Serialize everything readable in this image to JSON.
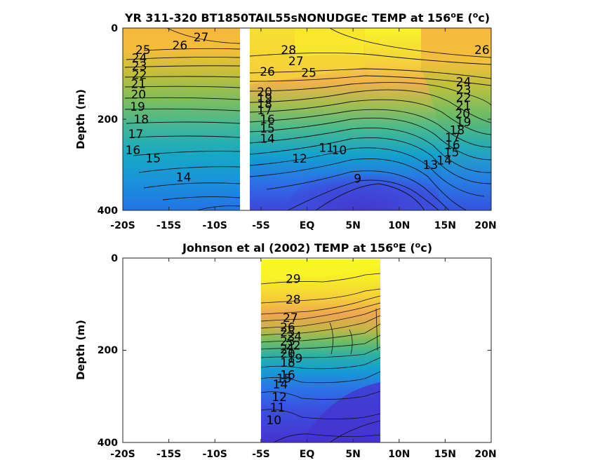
{
  "chart_data": [
    {
      "type": "heatmap",
      "title_prefix": "YR 311-320 BT1850TAIL55sNONUDGEc TEMP at 156",
      "title_sup1": "o",
      "title_mid": "E (",
      "title_sup2": "o",
      "title_suffix": "c)",
      "ylabel": "Depth (m)",
      "xlim": [
        -20,
        20
      ],
      "ylim": [
        0,
        400
      ],
      "y_reversed": true,
      "x_ticks": [
        -20,
        -15,
        -10,
        -5,
        0,
        5,
        10,
        15,
        20
      ],
      "x_tick_labels": [
        "-20S",
        "-15S",
        "-10S",
        "-5S",
        "EQ",
        "5N",
        "10N",
        "15N",
        "20N"
      ],
      "y_ticks": [
        0,
        200,
        400
      ],
      "y_tick_labels": [
        "0",
        "200",
        "400"
      ],
      "data_gap": [
        -7.7,
        -6.9
      ],
      "colormap": "parula",
      "contour_interval": 1,
      "contour_labels": [
        {
          "text": "27",
          "x": -11.5,
          "y": 20
        },
        {
          "text": "26",
          "x": -13.8,
          "y": 38
        },
        {
          "text": "25",
          "x": -17.8,
          "y": 48
        },
        {
          "text": "24",
          "x": -18.2,
          "y": 65
        },
        {
          "text": "23",
          "x": -18.2,
          "y": 83
        },
        {
          "text": "22",
          "x": -18.2,
          "y": 102
        },
        {
          "text": "21",
          "x": -18.3,
          "y": 122
        },
        {
          "text": "20",
          "x": -18.3,
          "y": 145
        },
        {
          "text": "19",
          "x": -18.4,
          "y": 172
        },
        {
          "text": "18",
          "x": -18.0,
          "y": 200
        },
        {
          "text": "17",
          "x": -18.6,
          "y": 232
        },
        {
          "text": "16",
          "x": -18.9,
          "y": 268
        },
        {
          "text": "15",
          "x": -16.7,
          "y": 285
        },
        {
          "text": "14",
          "x": -13.4,
          "y": 327
        },
        {
          "text": "28",
          "x": -2.0,
          "y": 48
        },
        {
          "text": "27",
          "x": -1.2,
          "y": 72
        },
        {
          "text": "26",
          "x": -4.3,
          "y": 95
        },
        {
          "text": "25",
          "x": 0.2,
          "y": 98
        },
        {
          "text": "20",
          "x": -4.6,
          "y": 140
        },
        {
          "text": "19",
          "x": -4.6,
          "y": 153
        },
        {
          "text": "18",
          "x": -4.6,
          "y": 166
        },
        {
          "text": "17",
          "x": -4.6,
          "y": 180
        },
        {
          "text": "16",
          "x": -4.3,
          "y": 200
        },
        {
          "text": "15",
          "x": -4.3,
          "y": 220
        },
        {
          "text": "14",
          "x": -4.3,
          "y": 242
        },
        {
          "text": "12",
          "x": -0.8,
          "y": 286
        },
        {
          "text": "11",
          "x": 2.1,
          "y": 262
        },
        {
          "text": "10",
          "x": 3.5,
          "y": 268
        },
        {
          "text": "9",
          "x": 5.5,
          "y": 330
        },
        {
          "text": "26",
          "x": 19.0,
          "y": 48
        },
        {
          "text": "24",
          "x": 17.0,
          "y": 118
        },
        {
          "text": "23",
          "x": 17.0,
          "y": 135
        },
        {
          "text": "22",
          "x": 17.0,
          "y": 152
        },
        {
          "text": "21",
          "x": 17.0,
          "y": 170
        },
        {
          "text": "20",
          "x": 16.9,
          "y": 188
        },
        {
          "text": "19",
          "x": 17.0,
          "y": 206
        },
        {
          "text": "18",
          "x": 16.3,
          "y": 224
        },
        {
          "text": "17",
          "x": 15.8,
          "y": 240
        },
        {
          "text": "16",
          "x": 15.8,
          "y": 256
        },
        {
          "text": "15",
          "x": 15.7,
          "y": 272
        },
        {
          "text": "14",
          "x": 14.9,
          "y": 290
        },
        {
          "text": "13",
          "x": 13.4,
          "y": 300
        }
      ]
    },
    {
      "type": "heatmap",
      "title_prefix": "Johnson et al (2002) TEMP at 156",
      "title_sup1": "o",
      "title_mid": "E (",
      "title_sup2": "o",
      "title_suffix": "c)",
      "ylabel": "Depth (m)",
      "xlim": [
        -20,
        20
      ],
      "ylim": [
        0,
        400
      ],
      "y_reversed": true,
      "x_ticks": [
        -20,
        -15,
        -10,
        -5,
        0,
        5,
        10,
        15,
        20
      ],
      "x_tick_labels": [
        "-20S",
        "-15S",
        "-10S",
        "-5S",
        "EQ",
        "5N",
        "10N",
        "15N",
        "20N"
      ],
      "y_ticks": [
        0,
        200,
        400
      ],
      "y_tick_labels": [
        "0",
        "200",
        "400"
      ],
      "data_extent": [
        -5,
        8
      ],
      "colormap": "parula",
      "contour_interval": 1,
      "contour_labels": [
        {
          "text": "29",
          "x": -1.5,
          "y": 75
        },
        {
          "text": "28",
          "x": -1.5,
          "y": 150
        },
        {
          "text": "27",
          "x": -1.8,
          "y": 215
        },
        {
          "text": "26",
          "x": -2.1,
          "y": 250
        },
        {
          "text": "25",
          "x": -2.1,
          "y": 268
        },
        {
          "text": "24",
          "x": -1.4,
          "y": 283
        },
        {
          "text": "23",
          "x": -2.1,
          "y": 300
        },
        {
          "text": "22",
          "x": -1.5,
          "y": 315
        },
        {
          "text": "21",
          "x": -2.1,
          "y": 330
        },
        {
          "text": "20",
          "x": -2.1,
          "y": 345
        },
        {
          "text": "19",
          "x": -1.3,
          "y": 362
        },
        {
          "text": "18",
          "x": -2.1,
          "y": 378
        },
        {
          "text": "16",
          "x": -2.1,
          "y": 422
        },
        {
          "text": "15",
          "x": -2.5,
          "y": 435
        },
        {
          "text": "14",
          "x": -2.9,
          "y": 456
        },
        {
          "text": "12",
          "x": -3.0,
          "y": 502
        },
        {
          "text": "11",
          "x": -3.2,
          "y": 540
        },
        {
          "text": "10",
          "x": -3.6,
          "y": 585
        }
      ]
    }
  ]
}
